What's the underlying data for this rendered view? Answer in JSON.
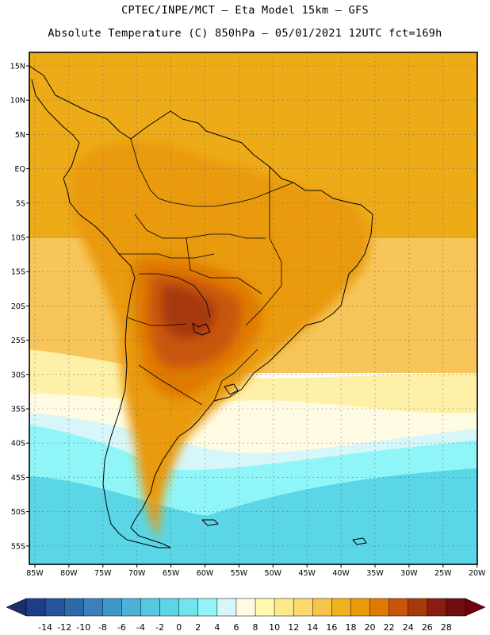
{
  "title": {
    "line1": "CPTEC/INPE/MCT –  Eta Model 15km – GFS",
    "line2": "Absolute Temperature (C) 850hPa – 05/01/2021 12UTC fct=169h"
  },
  "axes": {
    "lat_labels": [
      "15N",
      "10N",
      "5N",
      "EQ",
      "5S",
      "10S",
      "15S",
      "20S",
      "25S",
      "30S",
      "35S",
      "40S",
      "45S",
      "50S",
      "55S"
    ],
    "lon_labels": [
      "85W",
      "80W",
      "75W",
      "70W",
      "65W",
      "60W",
      "55W",
      "50W",
      "45W",
      "40W",
      "35W",
      "30W",
      "25W",
      "20W"
    ]
  },
  "colorbar": {
    "ticks": [
      "-14",
      "-12",
      "-10",
      "-8",
      "-6",
      "-4",
      "-2",
      "0",
      "2",
      "4",
      "6",
      "8",
      "10",
      "12",
      "14",
      "16",
      "18",
      "20",
      "22",
      "24",
      "26",
      "28"
    ],
    "colors": [
      "#1d3f8a",
      "#24549a",
      "#2c68aa",
      "#3a80bb",
      "#3f97c9",
      "#4bb2d6",
      "#55c8df",
      "#5ad6e6",
      "#6fe6ee",
      "#8ff5f7",
      "#d6f6fa",
      "#fffbe3",
      "#fff8ad",
      "#fde98a",
      "#fcd96a",
      "#f4c548",
      "#f0b21e",
      "#eb9b0a",
      "#e07a05",
      "#c95608",
      "#a8390a",
      "#8a1d10",
      "#6f0d10"
    ],
    "arrow_low": "#1a2f6e",
    "arrow_high": "#6f0010"
  },
  "palette": {
    "ocean_north": "#eeab18",
    "ocean_mid": "#f7c55a",
    "ocean_cool": "#fff0a8",
    "ocean_pale": "#fffbe3",
    "ocean_cold": "#d6f6fa",
    "ocean_cyan": "#8ff5f7",
    "ocean_deep": "#5ad6e6",
    "land_warm": "#e99a0c",
    "land_hot": "#e07a05",
    "land_hotter": "#c95608",
    "land_core": "#a8390a"
  }
}
